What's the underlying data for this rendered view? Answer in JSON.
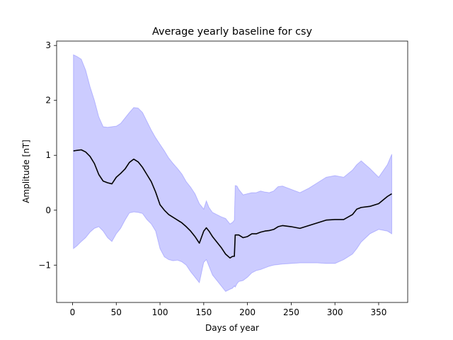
{
  "chart_data": {
    "type": "area",
    "title": "Average yearly baseline for csy",
    "xlabel": "Days of year",
    "ylabel": "Amplitude [nT]",
    "xlim": [
      -18.2,
      383.2
    ],
    "ylim": [
      -1.68,
      3.08
    ],
    "xticks": [
      0,
      50,
      100,
      150,
      200,
      250,
      300,
      350
    ],
    "xtick_labels": [
      "0",
      "50",
      "100",
      "150",
      "200",
      "250",
      "300",
      "350"
    ],
    "yticks": [
      -1,
      0,
      1,
      2,
      3
    ],
    "ytick_labels": [
      "−1",
      "0",
      "1",
      "2",
      "3"
    ],
    "grid": false,
    "legend": "none",
    "band_color": "#0000ff",
    "line_color": "#000000",
    "band": {
      "name": "",
      "x": [
        1,
        5,
        10,
        15,
        20,
        25,
        30,
        35,
        40,
        45,
        50,
        55,
        60,
        65,
        70,
        75,
        80,
        85,
        90,
        95,
        100,
        105,
        110,
        115,
        120,
        125,
        130,
        135,
        140,
        145,
        150,
        153,
        156,
        160,
        165,
        170,
        175,
        180,
        183,
        185,
        186,
        188,
        190,
        195,
        200,
        205,
        210,
        215,
        220,
        225,
        230,
        235,
        240,
        250,
        260,
        270,
        280,
        290,
        300,
        310,
        320,
        325,
        330,
        340,
        350,
        360,
        365
      ],
      "upper": [
        2.83,
        2.8,
        2.75,
        2.55,
        2.25,
        2.0,
        1.7,
        1.52,
        1.51,
        1.52,
        1.53,
        1.58,
        1.68,
        1.78,
        1.87,
        1.86,
        1.78,
        1.62,
        1.46,
        1.32,
        1.2,
        1.08,
        0.95,
        0.85,
        0.76,
        0.66,
        0.52,
        0.42,
        0.3,
        0.12,
        0.02,
        0.17,
        0.05,
        -0.04,
        -0.08,
        -0.12,
        -0.15,
        -0.25,
        -0.22,
        -0.18,
        0.45,
        0.44,
        0.38,
        0.28,
        0.3,
        0.32,
        0.32,
        0.35,
        0.33,
        0.32,
        0.35,
        0.43,
        0.44,
        0.38,
        0.32,
        0.4,
        0.5,
        0.6,
        0.63,
        0.6,
        0.73,
        0.83,
        0.9,
        0.76,
        0.6,
        0.83,
        1.02
      ],
      "lower": [
        -0.7,
        -0.65,
        -0.57,
        -0.5,
        -0.4,
        -0.33,
        -0.3,
        -0.38,
        -0.5,
        -0.57,
        -0.43,
        -0.33,
        -0.18,
        -0.05,
        -0.03,
        -0.04,
        -0.06,
        -0.17,
        -0.25,
        -0.38,
        -0.7,
        -0.85,
        -0.9,
        -0.92,
        -0.91,
        -0.94,
        -1.0,
        -1.12,
        -1.22,
        -1.32,
        -0.95,
        -0.9,
        -1.02,
        -1.18,
        -1.28,
        -1.38,
        -1.48,
        -1.44,
        -1.42,
        -1.38,
        -1.4,
        -1.34,
        -1.3,
        -1.28,
        -1.22,
        -1.14,
        -1.1,
        -1.08,
        -1.05,
        -1.02,
        -1.0,
        -0.99,
        -0.98,
        -0.97,
        -0.96,
        -0.96,
        -0.96,
        -0.97,
        -0.97,
        -0.9,
        -0.8,
        -0.7,
        -0.58,
        -0.43,
        -0.35,
        -0.38,
        -0.43
      ]
    },
    "series": [
      {
        "name": "",
        "x": [
          1,
          5,
          10,
          15,
          20,
          25,
          30,
          35,
          40,
          45,
          50,
          55,
          60,
          65,
          70,
          75,
          80,
          85,
          90,
          95,
          100,
          105,
          110,
          115,
          120,
          125,
          130,
          135,
          140,
          145,
          150,
          153,
          156,
          160,
          165,
          170,
          175,
          180,
          183,
          185,
          186,
          188,
          190,
          195,
          200,
          205,
          210,
          215,
          220,
          225,
          230,
          235,
          240,
          250,
          260,
          270,
          280,
          290,
          300,
          310,
          320,
          325,
          330,
          340,
          350,
          360,
          365
        ],
        "values": [
          1.08,
          1.09,
          1.1,
          1.06,
          0.98,
          0.85,
          0.65,
          0.53,
          0.5,
          0.48,
          0.6,
          0.67,
          0.75,
          0.87,
          0.93,
          0.88,
          0.78,
          0.65,
          0.52,
          0.33,
          0.1,
          0.0,
          -0.08,
          -0.13,
          -0.18,
          -0.23,
          -0.3,
          -0.38,
          -0.48,
          -0.6,
          -0.38,
          -0.32,
          -0.38,
          -0.48,
          -0.58,
          -0.68,
          -0.8,
          -0.87,
          -0.84,
          -0.84,
          -0.45,
          -0.45,
          -0.45,
          -0.5,
          -0.48,
          -0.43,
          -0.43,
          -0.4,
          -0.38,
          -0.37,
          -0.35,
          -0.3,
          -0.28,
          -0.3,
          -0.33,
          -0.28,
          -0.23,
          -0.18,
          -0.17,
          -0.17,
          -0.08,
          0.02,
          0.05,
          0.07,
          0.12,
          0.25,
          0.3
        ]
      }
    ]
  }
}
